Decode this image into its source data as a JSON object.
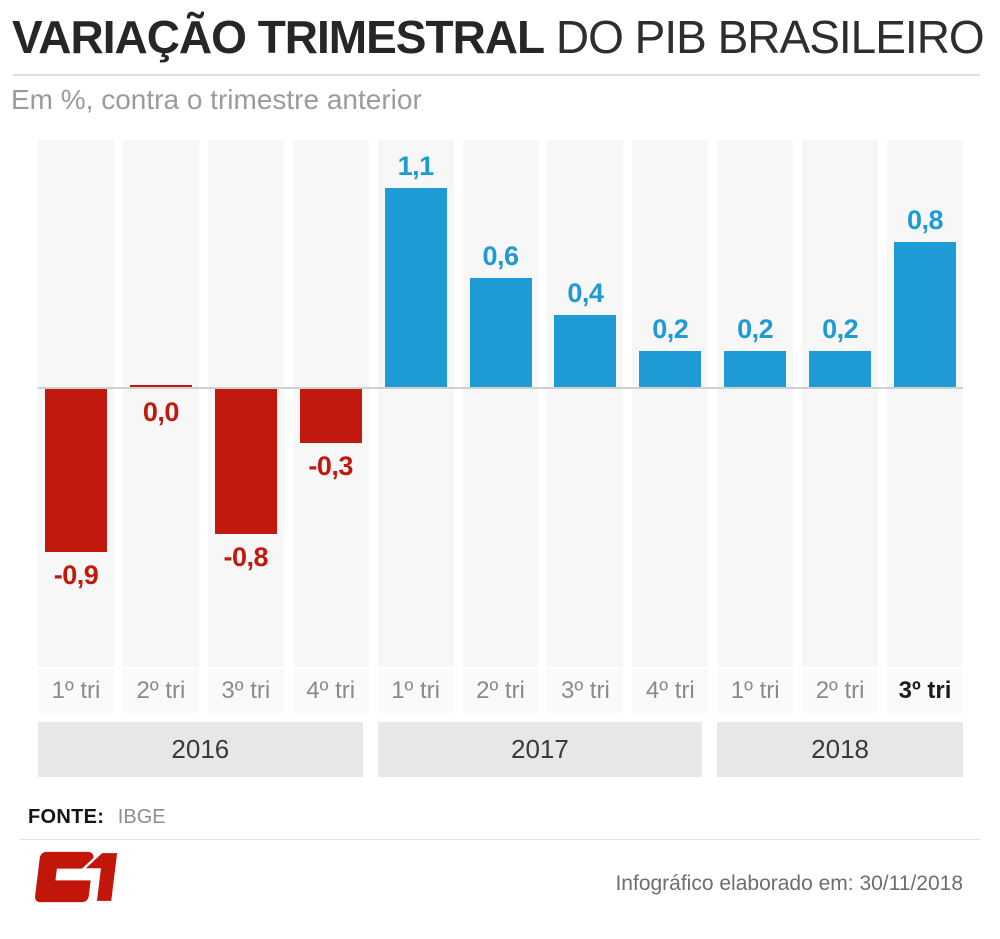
{
  "header": {
    "title_bold": "VARIAÇÃO TRIMESTRAL",
    "title_light": "DO PIB BRASILEIRO",
    "subtitle": "Em %, contra o trimestre anterior"
  },
  "chart_data": {
    "type": "bar",
    "title": "VARIAÇÃO TRIMESTRAL DO PIB BRASILEIRO",
    "subtitle": "Em %, contra o trimestre anterior",
    "unit": "%",
    "categories": [
      "1º tri",
      "2º tri",
      "3º tri",
      "4º tri",
      "1º tri",
      "2º tri",
      "3º tri",
      "4º tri",
      "1º tri",
      "2º tri",
      "3º tri"
    ],
    "values": [
      -0.9,
      0,
      -0.8,
      -0.3,
      1.1,
      0.6,
      0.4,
      0.2,
      0.2,
      0.2,
      0.8
    ],
    "value_labels": [
      "-0,9",
      "0,0",
      "-0,8",
      "-0,3",
      "1,1",
      "0,6",
      "0,4",
      "0,2",
      "0,2",
      "0,2",
      "0,8"
    ],
    "groups": [
      {
        "label": "2016",
        "start": 0,
        "end": 3
      },
      {
        "label": "2017",
        "start": 4,
        "end": 7
      },
      {
        "label": "2018",
        "start": 8,
        "end": 10
      }
    ],
    "colors": {
      "positive_bar": "#1e9bd4",
      "negative_bar": "#c2190f"
    },
    "ylim": [
      -1.05,
      1.3
    ],
    "grid": false,
    "legend": "none",
    "highlighted_category_index": 10
  },
  "footer": {
    "source_label": "FONTE:",
    "source_value": "IBGE",
    "logo": "G1",
    "logo_color": "#c3160b",
    "credit": "Infográfico elaborado em: 30/11/2018"
  }
}
